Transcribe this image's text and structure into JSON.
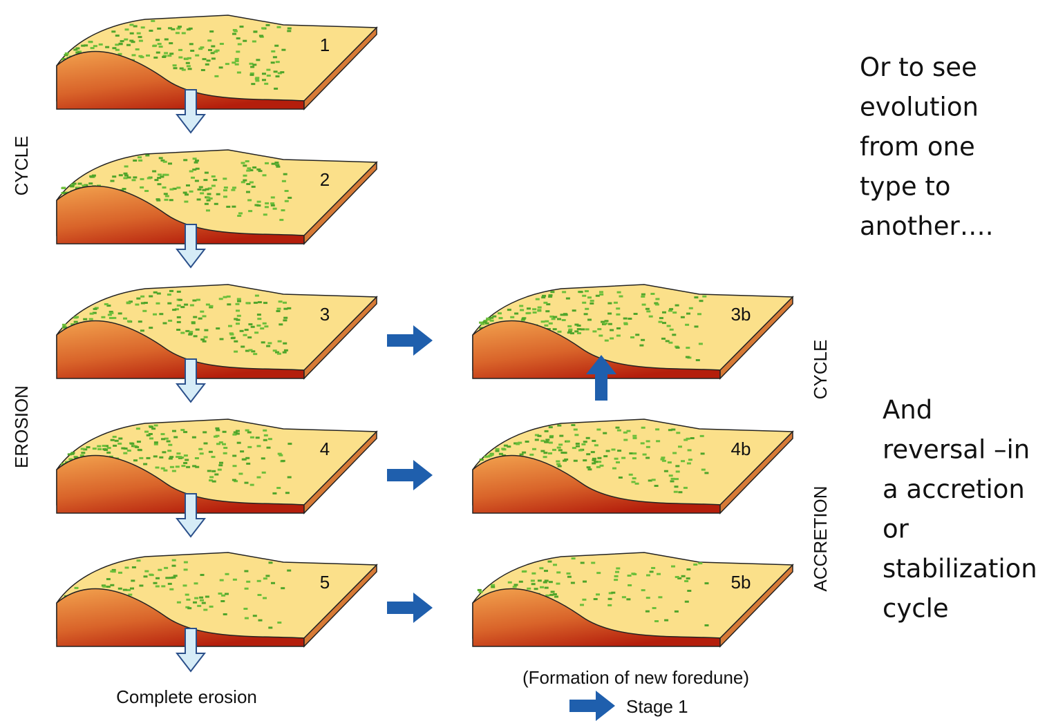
{
  "stages": [
    "1",
    "2",
    "3",
    "4",
    "5",
    "3b",
    "4b",
    "5b"
  ],
  "side_labels": {
    "left_top": "CYCLE",
    "left_bottom": "EROSION",
    "right_top": "CYCLE",
    "right_bottom": "ACCRETION"
  },
  "captions": {
    "complete": "Complete erosion",
    "foredune": "(Formation of new foredune)",
    "stage1": "Stage 1"
  },
  "notes": {
    "evolution": [
      "Or to see",
      "evolution",
      "from one",
      "type to",
      "another…."
    ],
    "reversal": [
      "And",
      "reversal –in",
      "a accretion",
      "or",
      "stabilization",
      "cycle"
    ]
  }
}
